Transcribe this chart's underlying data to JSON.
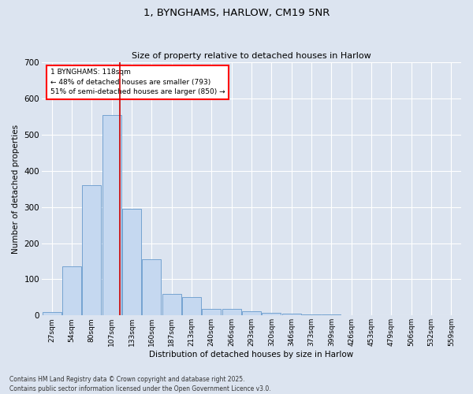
{
  "title1": "1, BYNGHAMS, HARLOW, CM19 5NR",
  "title2": "Size of property relative to detached houses in Harlow",
  "xlabel": "Distribution of detached houses by size in Harlow",
  "ylabel": "Number of detached properties",
  "categories": [
    "27sqm",
    "54sqm",
    "80sqm",
    "107sqm",
    "133sqm",
    "160sqm",
    "187sqm",
    "213sqm",
    "240sqm",
    "266sqm",
    "293sqm",
    "320sqm",
    "346sqm",
    "373sqm",
    "399sqm",
    "426sqm",
    "453sqm",
    "479sqm",
    "506sqm",
    "532sqm",
    "559sqm"
  ],
  "values": [
    10,
    135,
    360,
    555,
    295,
    155,
    60,
    50,
    18,
    18,
    12,
    8,
    5,
    3,
    2,
    1,
    1,
    0,
    0,
    0,
    0
  ],
  "bar_color": "#c5d8f0",
  "bar_edge_color": "#6699cc",
  "annotation_text_line1": "1 BYNGHAMS: 118sqm",
  "annotation_text_line2": "← 48% of detached houses are smaller (793)",
  "annotation_text_line3": "51% of semi-detached houses are larger (850) →",
  "vline_color": "#cc0000",
  "ylim": [
    0,
    700
  ],
  "yticks": [
    0,
    100,
    200,
    300,
    400,
    500,
    600,
    700
  ],
  "background_color": "#dce4f0",
  "grid_color": "#ffffff",
  "fig_background": "#dce4f0",
  "footnote1": "Contains HM Land Registry data © Crown copyright and database right 2025.",
  "footnote2": "Contains public sector information licensed under the Open Government Licence v3.0."
}
